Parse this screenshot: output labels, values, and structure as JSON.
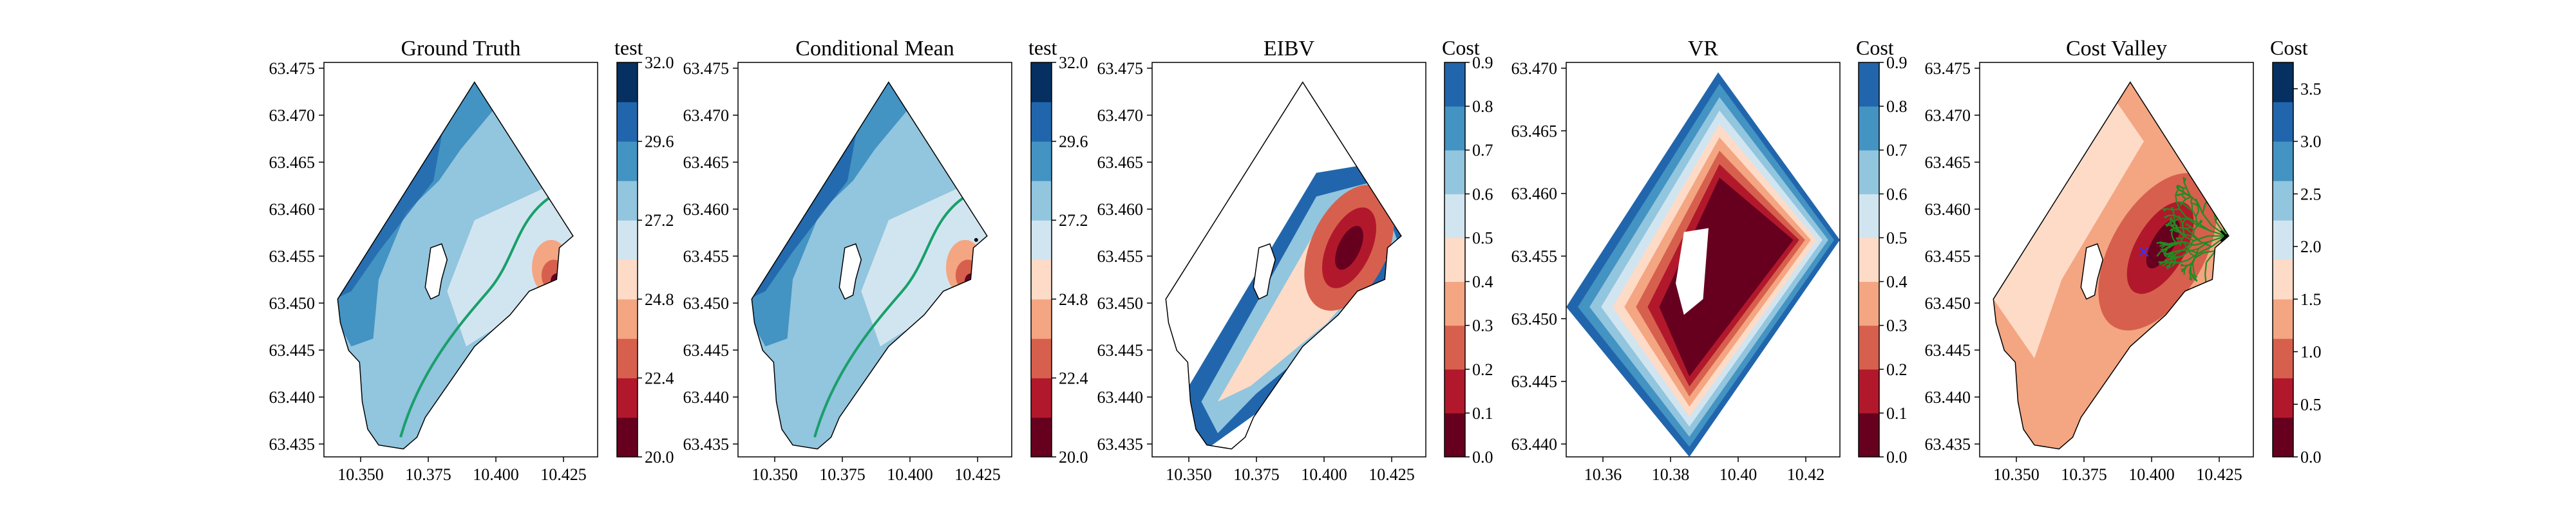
{
  "chart_data": [
    {
      "type": "heatmap",
      "title": "Ground Truth",
      "xticks": [
        "10.350",
        "10.375",
        "10.400",
        "10.425"
      ],
      "yticks": [
        "63.475",
        "63.470",
        "63.465",
        "63.460",
        "63.455",
        "63.450",
        "63.445",
        "63.440",
        "63.435"
      ],
      "xlim": [
        10.34,
        10.44
      ],
      "ylim": [
        63.433,
        63.476
      ],
      "colorbar": {
        "title": "test",
        "ticks": [
          "32.0",
          "29.6",
          "27.2",
          "24.8",
          "22.4",
          "20.0"
        ],
        "range": [
          20.0,
          32.0
        ],
        "palette": "RdBu",
        "levels": 10
      },
      "annotations": [
        "green isoline"
      ]
    },
    {
      "type": "heatmap",
      "title": "Conditional Mean",
      "xticks": [
        "10.350",
        "10.375",
        "10.400",
        "10.425"
      ],
      "yticks": [
        "63.475",
        "63.470",
        "63.465",
        "63.460",
        "63.455",
        "63.450",
        "63.445",
        "63.440",
        "63.435"
      ],
      "xlim": [
        10.34,
        10.44
      ],
      "ylim": [
        63.433,
        63.476
      ],
      "colorbar": {
        "title": "test",
        "ticks": [
          "32.0",
          "29.6",
          "27.2",
          "24.8",
          "22.4",
          "20.0"
        ],
        "range": [
          20.0,
          32.0
        ],
        "palette": "RdBu",
        "levels": 10
      },
      "annotations": [
        "green isoline",
        "black marker"
      ]
    },
    {
      "type": "heatmap",
      "title": "EIBV",
      "xticks": [
        "10.350",
        "10.375",
        "10.400",
        "10.425"
      ],
      "yticks": [
        "63.475",
        "63.470",
        "63.465",
        "63.460",
        "63.455",
        "63.450",
        "63.445",
        "63.440",
        "63.435"
      ],
      "xlim": [
        10.34,
        10.44
      ],
      "ylim": [
        63.433,
        63.476
      ],
      "colorbar": {
        "title": "Cost",
        "ticks": [
          "0.9",
          "0.8",
          "0.7",
          "0.6",
          "0.5",
          "0.4",
          "0.3",
          "0.2",
          "0.1",
          "0.0"
        ],
        "range": [
          0.0,
          0.9
        ],
        "palette": "RdBu",
        "levels": 9
      }
    },
    {
      "type": "heatmap",
      "title": "VR",
      "xticks": [
        "10.36",
        "10.38",
        "10.40",
        "10.42"
      ],
      "yticks": [
        "63.470",
        "63.465",
        "63.460",
        "63.455",
        "63.450",
        "63.445",
        "63.440"
      ],
      "xlim": [
        10.348,
        10.434
      ],
      "ylim": [
        63.435,
        63.474
      ],
      "colorbar": {
        "title": "Cost",
        "ticks": [
          "0.9",
          "0.8",
          "0.7",
          "0.6",
          "0.5",
          "0.4",
          "0.3",
          "0.2",
          "0.1",
          "0.0"
        ],
        "range": [
          0.0,
          0.9
        ],
        "palette": "RdBu",
        "levels": 9
      }
    },
    {
      "type": "heatmap",
      "title": "Cost Valley",
      "xticks": [
        "10.350",
        "10.375",
        "10.400",
        "10.425"
      ],
      "yticks": [
        "63.475",
        "63.470",
        "63.465",
        "63.460",
        "63.455",
        "63.450",
        "63.445",
        "63.440",
        "63.435"
      ],
      "xlim": [
        10.34,
        10.44
      ],
      "ylim": [
        63.433,
        63.476
      ],
      "colorbar": {
        "title": "Cost",
        "ticks": [
          "3.5",
          "3.0",
          "2.5",
          "2.0",
          "1.5",
          "1.0",
          "0.5",
          "0.0"
        ],
        "range": [
          0.0,
          3.75
        ],
        "palette": "RdBu",
        "levels": 10
      },
      "annotations": [
        "green path tree",
        "blue markers",
        "black marker"
      ]
    }
  ]
}
